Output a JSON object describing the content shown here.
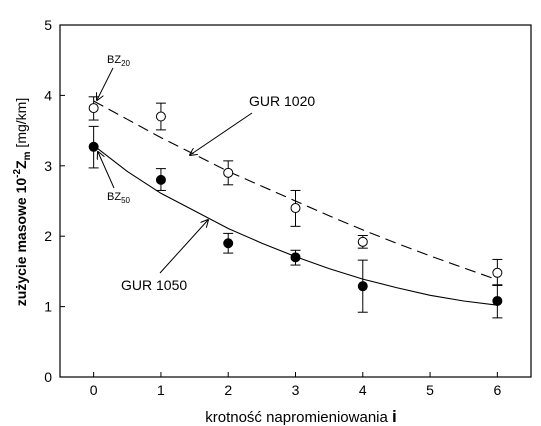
{
  "chart_data": {
    "type": "scatter",
    "ylabel_parts": {
      "a": "zużycie masowe 10",
      "sup": "-2",
      "z": "Z",
      "sub": "m",
      "unit": " [mg/km]"
    },
    "xlabel_parts": {
      "text": "krotność napromieniowania ",
      "var": "i"
    },
    "xlim": [
      -0.5,
      6.5
    ],
    "ylim": [
      0,
      5
    ],
    "x_ticks": [
      0,
      1,
      2,
      3,
      4,
      5,
      6
    ],
    "y_ticks": [
      0,
      1,
      2,
      3,
      4,
      5
    ],
    "x_tick_labels": [
      "0",
      "1",
      "2",
      "3",
      "4",
      "5",
      "6"
    ],
    "y_tick_labels": [
      "0",
      "1",
      "2",
      "3",
      "4",
      "5"
    ],
    "series": [
      {
        "name": "GUR 1020",
        "marker": "open-circle",
        "line_style": "dashed",
        "x": [
          0,
          1,
          2,
          3,
          4,
          6
        ],
        "y": [
          3.82,
          3.7,
          2.9,
          2.4,
          1.92,
          1.48
        ],
        "err_low": [
          3.65,
          3.51,
          2.73,
          2.14,
          1.83,
          1.31
        ],
        "err_high": [
          3.98,
          3.89,
          3.07,
          2.65,
          2.01,
          1.67
        ],
        "fit_x": [
          0,
          0.5,
          1,
          1.5,
          2,
          2.5,
          3,
          3.5,
          4,
          4.5,
          5,
          5.5,
          6
        ],
        "fit_y": [
          3.92,
          3.66,
          3.4,
          3.16,
          2.92,
          2.71,
          2.5,
          2.29,
          2.09,
          1.9,
          1.72,
          1.55,
          1.38
        ]
      },
      {
        "name": "GUR 1050",
        "marker": "filled-circle",
        "line_style": "solid",
        "x": [
          0,
          1,
          2,
          3,
          4,
          6
        ],
        "y": [
          3.27,
          2.8,
          1.9,
          1.7,
          1.29,
          1.08
        ],
        "err_low": [
          2.97,
          2.65,
          1.76,
          1.59,
          0.92,
          0.84
        ],
        "err_high": [
          3.56,
          2.96,
          2.04,
          1.8,
          1.66,
          1.3
        ],
        "fit_x": [
          0,
          0.5,
          1,
          1.5,
          2,
          2.5,
          3,
          3.5,
          4,
          4.5,
          5,
          5.5,
          6
        ],
        "fit_y": [
          3.29,
          2.92,
          2.61,
          2.36,
          2.11,
          1.9,
          1.71,
          1.54,
          1.39,
          1.27,
          1.16,
          1.08,
          1.02
        ]
      }
    ],
    "annotations": [
      {
        "label": "GUR 1020",
        "type": "series-label"
      },
      {
        "label": "GUR 1050",
        "type": "series-label"
      },
      {
        "label_main": "BZ",
        "label_sub": "20",
        "type": "point-label"
      },
      {
        "label_main": "BZ",
        "label_sub": "50",
        "type": "point-label"
      }
    ]
  }
}
